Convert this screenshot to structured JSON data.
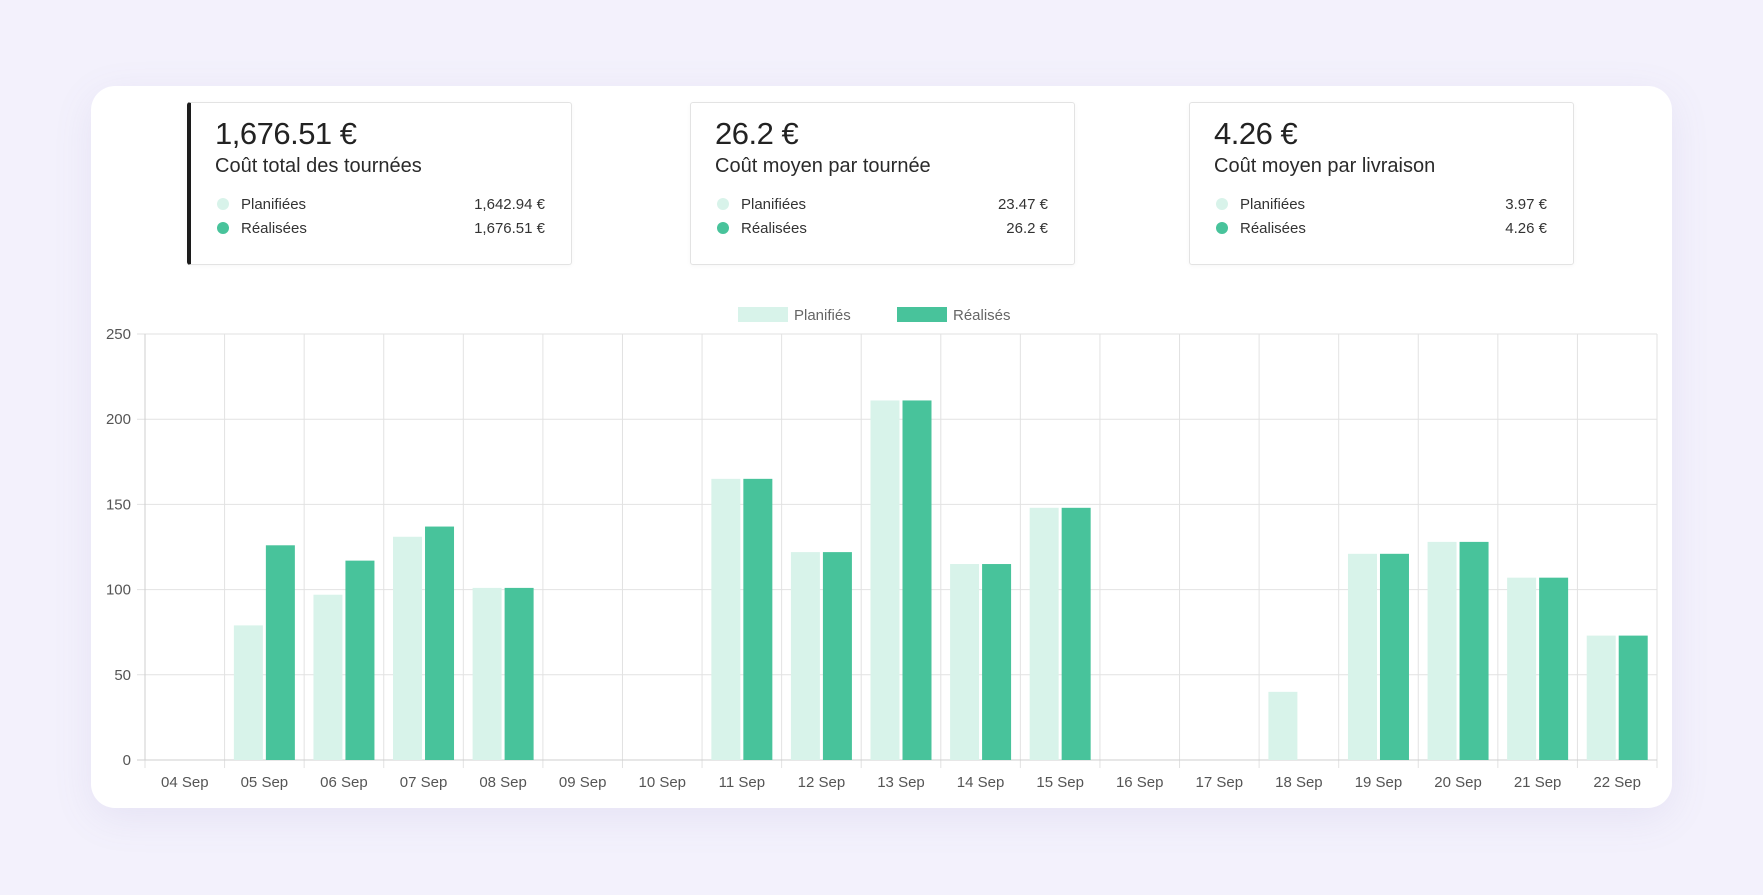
{
  "colors": {
    "planned": "#d8f3ea",
    "actual": "#48c39b",
    "grid": "#e2e2e2",
    "background": "#f3f1fc"
  },
  "cards": [
    {
      "value": "1,676.51 €",
      "label": "Coût total des tournées",
      "rows": [
        {
          "label": "Planifiées",
          "value": "1,642.94 €"
        },
        {
          "label": "Réalisées",
          "value": "1,676.51 €"
        }
      ]
    },
    {
      "value": "26.2 €",
      "label": "Coût moyen par tournée",
      "rows": [
        {
          "label": "Planifiées",
          "value": "23.47 €"
        },
        {
          "label": "Réalisées",
          "value": "26.2 €"
        }
      ]
    },
    {
      "value": "4.26 €",
      "label": "Coût moyen par livraison",
      "rows": [
        {
          "label": "Planifiées",
          "value": "3.97 €"
        },
        {
          "label": "Réalisées",
          "value": "4.26 €"
        }
      ]
    }
  ],
  "chart_data": {
    "type": "bar",
    "categories": [
      "04 Sep",
      "05 Sep",
      "06 Sep",
      "07 Sep",
      "08 Sep",
      "09 Sep",
      "10 Sep",
      "11 Sep",
      "12 Sep",
      "13 Sep",
      "14 Sep",
      "15 Sep",
      "16 Sep",
      "17 Sep",
      "18 Sep",
      "19 Sep",
      "20 Sep",
      "21 Sep",
      "22 Sep"
    ],
    "series": [
      {
        "name": "Planifiés",
        "values": [
          0,
          79,
          97,
          131,
          101,
          0,
          0,
          165,
          122,
          211,
          115,
          148,
          0,
          0,
          40,
          121,
          128,
          107,
          73
        ]
      },
      {
        "name": "Réalisés",
        "values": [
          0,
          126,
          117,
          137,
          101,
          0,
          0,
          165,
          122,
          211,
          115,
          148,
          0,
          0,
          0,
          121,
          128,
          107,
          73
        ]
      }
    ],
    "yticks": [
      0,
      50,
      100,
      150,
      200,
      250
    ],
    "ylim": [
      0,
      250
    ],
    "grid": true,
    "legend": "top-center"
  }
}
